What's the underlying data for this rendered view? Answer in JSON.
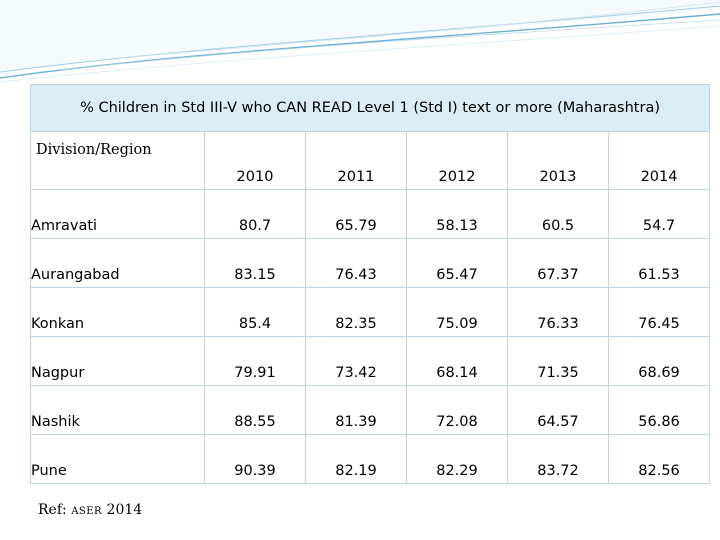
{
  "table": {
    "title": "% Children in Std III-V who CAN READ Level 1 (Std I) text or more (Maharashtra)",
    "row_header": "Division/Region",
    "years": [
      "2010",
      "2011",
      "2012",
      "2013",
      "2014"
    ],
    "rows": [
      {
        "region": "Amravati",
        "values": [
          "80.7",
          "65.79",
          "58.13",
          "60.5",
          "54.7"
        ]
      },
      {
        "region": "Aurangabad",
        "values": [
          "83.15",
          "76.43",
          "65.47",
          "67.37",
          "61.53"
        ]
      },
      {
        "region": "Konkan",
        "values": [
          "85.4",
          "82.35",
          "75.09",
          "76.33",
          "76.45"
        ]
      },
      {
        "region": "Nagpur",
        "values": [
          "79.91",
          "73.42",
          "68.14",
          "71.35",
          "68.69"
        ]
      },
      {
        "region": "Nashik",
        "values": [
          "88.55",
          "81.39",
          "72.08",
          "64.57",
          "56.86"
        ]
      },
      {
        "region": "Pune",
        "values": [
          "90.39",
          "82.19",
          "82.29",
          "83.72",
          "82.56"
        ]
      }
    ]
  },
  "reference": {
    "prefix": "Ref:",
    "source": "ASER",
    "year": "2014"
  },
  "colors": {
    "title_bg": "#dbeef7",
    "border": "#bcd6e6",
    "swoosh": "#5aa8d0"
  }
}
